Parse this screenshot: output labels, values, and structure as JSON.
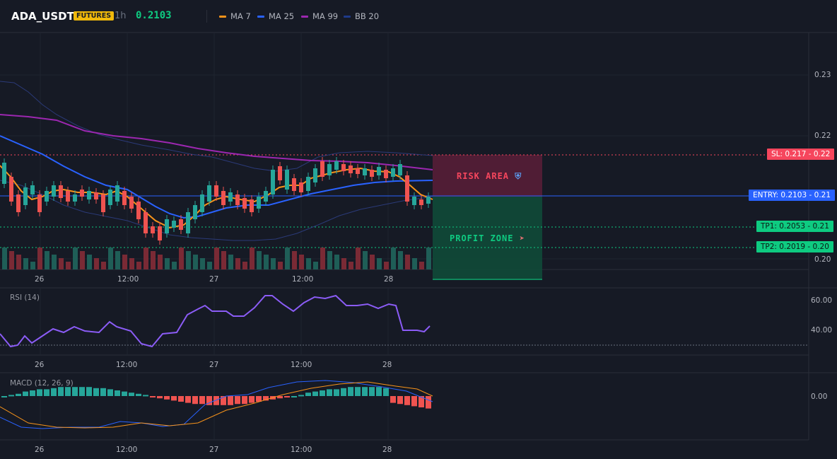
{
  "header": {
    "symbol": "ADA_USDT",
    "badge": "FUTURES",
    "timeframe": "1h",
    "last_price": "0.2103",
    "indicators": [
      {
        "label": "MA 7",
        "color": "#f7931a"
      },
      {
        "label": "MA 25",
        "color": "#2962ff"
      },
      {
        "label": "MA 99",
        "color": "#9c27b0"
      },
      {
        "label": "BB 20",
        "color": "#1e3a8a"
      }
    ]
  },
  "main_chart": {
    "price_axis": [
      "0.23",
      "0.22",
      "0.21",
      "0.20"
    ],
    "time_axis": [
      "26",
      "12:00",
      "27",
      "12:00",
      "28"
    ],
    "levels": {
      "sl": {
        "label": "SL: 0.217",
        "axis": "0.22",
        "color": "#f6465d"
      },
      "entry": {
        "label": "ENTRY: 0.2103",
        "axis": "0.21",
        "color": "#2962ff"
      },
      "tp1": {
        "label": "TP1: 0.2053",
        "axis": "0.21",
        "color": "#0ecb81"
      },
      "tp2": {
        "label": "TP2: 0.2019",
        "axis": "0.20",
        "color": "#0ecb81"
      }
    },
    "risk_label": "RISK AREA",
    "risk_icon": "shield-icon",
    "profit_label": "PROFIT ZONE",
    "profit_icon": "rocket-icon"
  },
  "rsi": {
    "title": "RSI (14)",
    "axis": [
      "60.00",
      "40.00"
    ],
    "time_axis": [
      "26",
      "12:00",
      "27",
      "12:00",
      "28"
    ]
  },
  "macd": {
    "title": "MACD (12, 26, 9)",
    "axis": [
      "0.00"
    ],
    "time_axis": [
      "26",
      "12:00",
      "27",
      "12:00",
      "28"
    ]
  },
  "colors": {
    "up": "#26a69a",
    "down": "#ef5350",
    "bg": "#161a25"
  }
}
